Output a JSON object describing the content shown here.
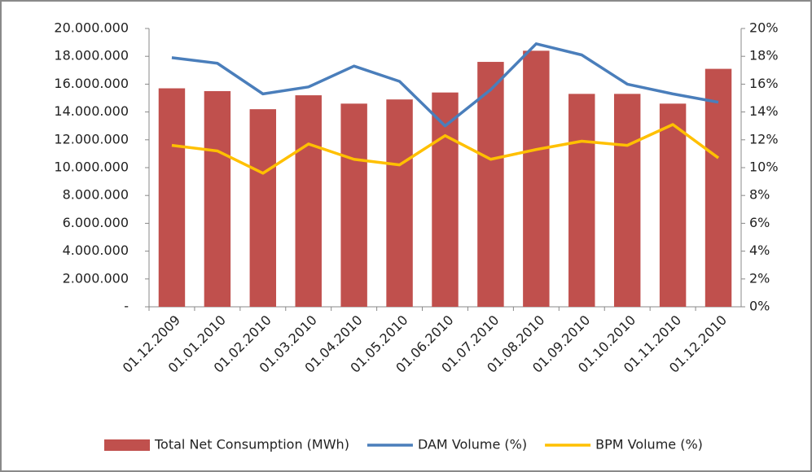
{
  "chart_data": {
    "type": "combo",
    "categories": [
      "01.12.2009",
      "01.01.2010",
      "01.02.2010",
      "01.03.2010",
      "01.04.2010",
      "01.05.2010",
      "01.06.2010",
      "01.07.2010",
      "01.08.2010",
      "01.09.2010",
      "01.10.2010",
      "01.11.2010",
      "01.12.2010"
    ],
    "series": [
      {
        "name": "Total Net Consumption (MWh)",
        "type": "bar",
        "color": "#c0504d",
        "values": [
          15700000,
          15500000,
          14200000,
          15200000,
          14600000,
          14900000,
          15400000,
          17600000,
          18400000,
          15300000,
          15300000,
          14600000,
          17100000
        ]
      },
      {
        "name": "DAM Volume (%)",
        "type": "line",
        "axis": "y2",
        "color": "#4a7ebb",
        "values": [
          17.9,
          17.5,
          15.3,
          15.8,
          17.3,
          16.2,
          13.0,
          15.6,
          18.9,
          18.1,
          16.0,
          15.3,
          14.7
        ]
      },
      {
        "name": "BPM Volume (%)",
        "type": "line",
        "axis": "y2",
        "color": "#ffc000",
        "values": [
          11.6,
          11.2,
          9.6,
          11.7,
          10.6,
          10.2,
          12.3,
          10.6,
          11.3,
          11.9,
          11.6,
          13.1,
          10.7
        ]
      }
    ],
    "ylim": [
      0,
      20000000
    ],
    "yticks": [
      {
        "value": 0,
        "label": "-"
      },
      {
        "value": 2000000,
        "label": "2.000.000"
      },
      {
        "value": 4000000,
        "label": "4.000.000"
      },
      {
        "value": 6000000,
        "label": "6.000.000"
      },
      {
        "value": 8000000,
        "label": "8.000.000"
      },
      {
        "value": 10000000,
        "label": "10.000.000"
      },
      {
        "value": 12000000,
        "label": "12.000.000"
      },
      {
        "value": 14000000,
        "label": "14.000.000"
      },
      {
        "value": 16000000,
        "label": "16.000.000"
      },
      {
        "value": 18000000,
        "label": "18.000.000"
      },
      {
        "value": 20000000,
        "label": "20.000.000"
      }
    ],
    "y2lim": [
      0,
      20
    ],
    "y2ticks": [
      {
        "value": 0,
        "label": "0%"
      },
      {
        "value": 2,
        "label": "2%"
      },
      {
        "value": 4,
        "label": "4%"
      },
      {
        "value": 6,
        "label": "6%"
      },
      {
        "value": 8,
        "label": "8%"
      },
      {
        "value": 10,
        "label": "10%"
      },
      {
        "value": 12,
        "label": "12%"
      },
      {
        "value": 14,
        "label": "14%"
      },
      {
        "value": 16,
        "label": "16%"
      },
      {
        "value": 18,
        "label": "18%"
      },
      {
        "value": 20,
        "label": "20%"
      }
    ],
    "grid": false,
    "legend": "bottom"
  }
}
